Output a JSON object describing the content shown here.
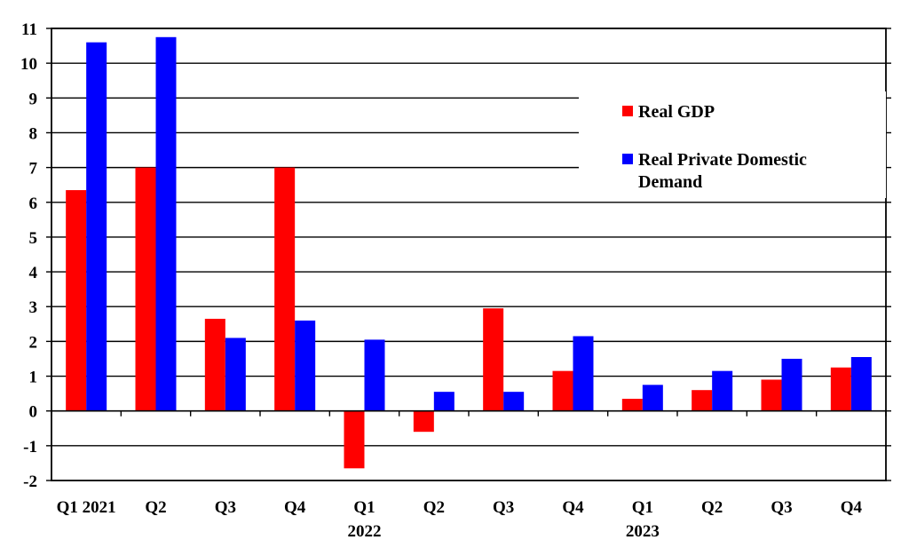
{
  "chart_data": {
    "type": "bar",
    "categories": [
      "Q1 2021",
      "Q2",
      "Q3",
      "Q4",
      "Q1",
      "Q2",
      "Q3",
      "Q4",
      "Q1",
      "Q2",
      "Q3",
      "Q4"
    ],
    "category_sublabels": [
      "",
      "",
      "",
      "",
      "2022",
      "",
      "",
      "",
      "2023",
      "",
      "",
      ""
    ],
    "series": [
      {
        "name": "Real GDP",
        "color": "#ff0000",
        "values": [
          6.35,
          7.0,
          2.65,
          7.0,
          -1.65,
          -0.6,
          2.95,
          1.15,
          0.35,
          0.6,
          0.9,
          1.25
        ]
      },
      {
        "name": "Real Private Domestic Demand",
        "color": "#0000ff",
        "values": [
          10.6,
          10.75,
          2.1,
          2.6,
          2.05,
          0.55,
          0.55,
          2.15,
          0.75,
          1.15,
          1.5,
          1.55
        ]
      }
    ],
    "legend_lines": [
      [
        "Real GDP"
      ],
      [
        "Real Private Domestic",
        "Demand"
      ]
    ],
    "yticks": [
      -2,
      -1,
      0,
      1,
      2,
      3,
      4,
      5,
      6,
      7,
      8,
      9,
      10,
      11
    ],
    "ylim": [
      -2,
      11
    ],
    "title": "",
    "xlabel": "",
    "ylabel": "",
    "grid": true,
    "legend_position": "top-right"
  }
}
